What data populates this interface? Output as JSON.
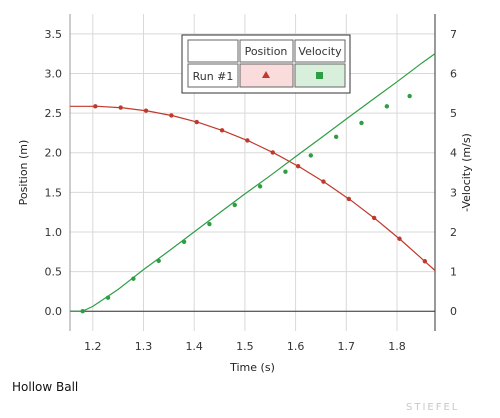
{
  "chart_data": {
    "type": "line",
    "title": "",
    "xlabel": "Time (s)",
    "ylabel_left": "Position (m)",
    "ylabel_right": "-Velocity (m/s)",
    "xlim": [
      1.155,
      1.875
    ],
    "ylim_left": [
      -0.25,
      3.75
    ],
    "ylim_right": [
      -0.5,
      7.5
    ],
    "x_ticks": [
      "1.2",
      "1.3",
      "1.4",
      "1.5",
      "1.6",
      "1.7",
      "1.8"
    ],
    "y_left_ticks": [
      "0.0",
      "0.5",
      "1.0",
      "1.5",
      "2.0",
      "2.5",
      "3.0",
      "3.5"
    ],
    "y_right_ticks": [
      "0",
      "1",
      "2",
      "3",
      "4",
      "5",
      "6",
      "7"
    ],
    "grid": true,
    "legend": {
      "placement": "top-center",
      "header_blank": "",
      "col_position": "Position",
      "col_velocity": "Velocity",
      "row_label": "Run #1"
    },
    "series": [
      {
        "name": "Position",
        "axis": "left",
        "color": "#c0392b",
        "line_x": [
          1.155,
          1.18,
          1.21,
          1.26,
          1.31,
          1.36,
          1.41,
          1.46,
          1.51,
          1.56,
          1.61,
          1.66,
          1.71,
          1.76,
          1.81,
          1.86,
          1.875
        ],
        "line_y": [
          2.585,
          2.585,
          2.585,
          2.565,
          2.525,
          2.463,
          2.378,
          2.27,
          2.14,
          1.987,
          1.812,
          1.614,
          1.394,
          1.151,
          0.886,
          0.599,
          0.513
        ],
        "points_x": [
          1.205,
          1.255,
          1.305,
          1.355,
          1.405,
          1.455,
          1.505,
          1.555,
          1.605,
          1.655,
          1.705,
          1.755,
          1.805,
          1.855
        ],
        "points_y": [
          2.585,
          2.57,
          2.53,
          2.47,
          2.387,
          2.282,
          2.154,
          2.003,
          1.83,
          1.635,
          1.417,
          1.177,
          0.914,
          0.63
        ]
      },
      {
        "name": "Velocity",
        "axis": "right",
        "color": "#2e9e44",
        "line_x": [
          1.155,
          1.18,
          1.2,
          1.25,
          1.3,
          1.35,
          1.4,
          1.45,
          1.5,
          1.55,
          1.6,
          1.65,
          1.7,
          1.75,
          1.8,
          1.85,
          1.875
        ],
        "line_y": [
          0.0,
          0.0,
          0.12,
          0.55,
          1.05,
          1.52,
          2.0,
          2.48,
          2.96,
          3.42,
          3.9,
          4.37,
          4.85,
          5.32,
          5.79,
          6.27,
          6.5
        ],
        "points_x": [
          1.18,
          1.23,
          1.28,
          1.33,
          1.38,
          1.43,
          1.48,
          1.53,
          1.58,
          1.63,
          1.68,
          1.73,
          1.78,
          1.825
        ],
        "points_y": [
          0.0,
          0.34,
          0.82,
          1.27,
          1.75,
          2.2,
          2.68,
          3.15,
          3.52,
          3.93,
          4.4,
          4.75,
          5.17,
          5.43
        ]
      }
    ]
  },
  "caption": "Hollow Ball",
  "watermark": "STIEFEL"
}
